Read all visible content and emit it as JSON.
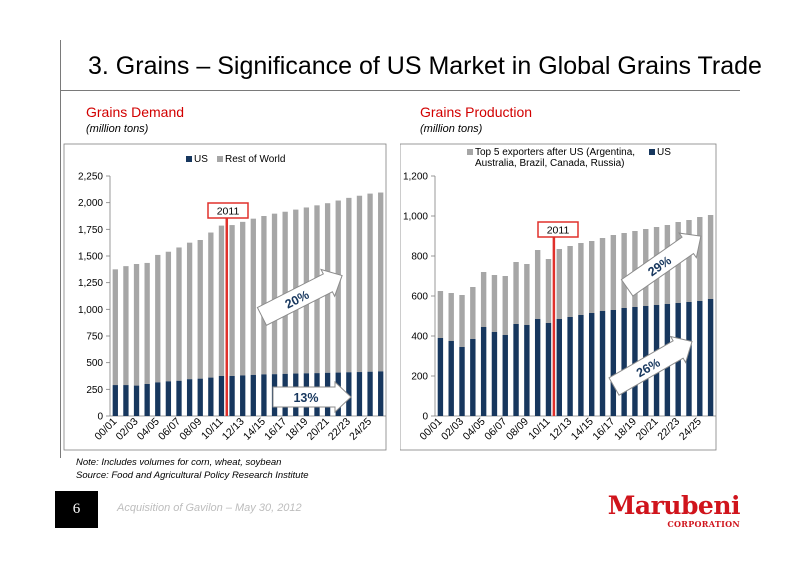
{
  "slide": {
    "title": "3.  Grains – Significance of US Market in Global Grains Trade",
    "page_number": "6",
    "footer": "Acquisition of Gavilon – May 30, 2012",
    "note": "Note: Includes volumes for corn, wheat, soybean",
    "source": "Source: Food and Agricultural Policy Research Institute",
    "logo_name": "Marubeni",
    "logo_sub": "CORPORATION"
  },
  "colors": {
    "us": "#17375e",
    "rest": "#a6a6a6",
    "accent": "#d20000",
    "marker": "#e0302b"
  },
  "left": {
    "heading": "Grains Demand",
    "unit": "(million tons)"
  },
  "right": {
    "heading": "Grains Production",
    "unit": "(million tons)"
  },
  "chart_data": [
    {
      "type": "bar",
      "stacked": true,
      "title": "Grains Demand",
      "ylabel": "(million tons)",
      "ylim": [
        0,
        2250
      ],
      "yticks": [
        0,
        250,
        500,
        750,
        1000,
        1250,
        1500,
        1750,
        2000,
        2250
      ],
      "ytick_labels": [
        "0",
        "250",
        "500",
        "750",
        "1,000",
        "1,250",
        "1,500",
        "1,750",
        "2,000",
        "2,250"
      ],
      "legend_position": "top",
      "categories": [
        "00/01",
        "01/02",
        "02/03",
        "03/04",
        "04/05",
        "05/06",
        "06/07",
        "07/08",
        "08/09",
        "09/10",
        "10/11",
        "11/12",
        "12/13",
        "13/14",
        "14/15",
        "15/16",
        "16/17",
        "17/18",
        "18/19",
        "19/20",
        "20/21",
        "21/22",
        "22/23",
        "23/24",
        "24/25",
        "25/26"
      ],
      "xtick_labels": [
        "00/01",
        "02/03",
        "04/05",
        "06/07",
        "08/09",
        "10/11",
        "12/13",
        "14/15",
        "16/17",
        "18/19",
        "20/21",
        "22/23",
        "24/25"
      ],
      "series": [
        {
          "name": "US",
          "values": [
            290,
            290,
            285,
            300,
            315,
            325,
            330,
            345,
            350,
            360,
            375,
            375,
            380,
            385,
            390,
            392,
            395,
            398,
            400,
            402,
            405,
            407,
            410,
            412,
            415,
            418
          ]
        },
        {
          "name": "Rest of World",
          "values": [
            1085,
            1115,
            1140,
            1135,
            1195,
            1215,
            1250,
            1280,
            1300,
            1360,
            1410,
            1415,
            1440,
            1465,
            1485,
            1505,
            1520,
            1537,
            1555,
            1573,
            1590,
            1613,
            1635,
            1653,
            1670,
            1677
          ]
        }
      ],
      "annotations": [
        {
          "text": "2011",
          "category": "10/11"
        },
        {
          "text": "20%"
        },
        {
          "text": "13%"
        }
      ]
    },
    {
      "type": "bar",
      "stacked": true,
      "title": "Grains Production",
      "ylabel": "(million tons)",
      "ylim": [
        0,
        1200
      ],
      "yticks": [
        0,
        200,
        400,
        600,
        800,
        1000,
        1200
      ],
      "ytick_labels": [
        "0",
        "200",
        "400",
        "600",
        "800",
        "1,000",
        "1,200"
      ],
      "legend_position": "top",
      "categories": [
        "00/01",
        "01/02",
        "02/03",
        "03/04",
        "04/05",
        "05/06",
        "06/07",
        "07/08",
        "08/09",
        "09/10",
        "10/11",
        "11/12",
        "12/13",
        "13/14",
        "14/15",
        "15/16",
        "16/17",
        "17/18",
        "18/19",
        "19/20",
        "20/21",
        "21/22",
        "22/23",
        "23/24",
        "24/25",
        "25/26"
      ],
      "xtick_labels": [
        "00/01",
        "02/03",
        "04/05",
        "06/07",
        "08/09",
        "10/11",
        "12/13",
        "14/15",
        "16/17",
        "18/19",
        "20/21",
        "22/23",
        "24/25"
      ],
      "series": [
        {
          "name": "US",
          "values": [
            390,
            375,
            345,
            385,
            445,
            420,
            405,
            460,
            455,
            485,
            465,
            485,
            495,
            505,
            515,
            525,
            530,
            540,
            545,
            550,
            555,
            560,
            565,
            570,
            575,
            585
          ]
        },
        {
          "name": "Top 5 exporters after US (Argentina, Australia, Brazil, Canada, Russia)",
          "values": [
            235,
            240,
            260,
            260,
            275,
            285,
            295,
            310,
            305,
            345,
            320,
            350,
            355,
            360,
            360,
            365,
            375,
            375,
            380,
            385,
            390,
            395,
            405,
            410,
            420,
            420
          ]
        }
      ],
      "annotations": [
        {
          "text": "2011",
          "category": "10/11"
        },
        {
          "text": "29%"
        },
        {
          "text": "26%"
        }
      ]
    }
  ]
}
